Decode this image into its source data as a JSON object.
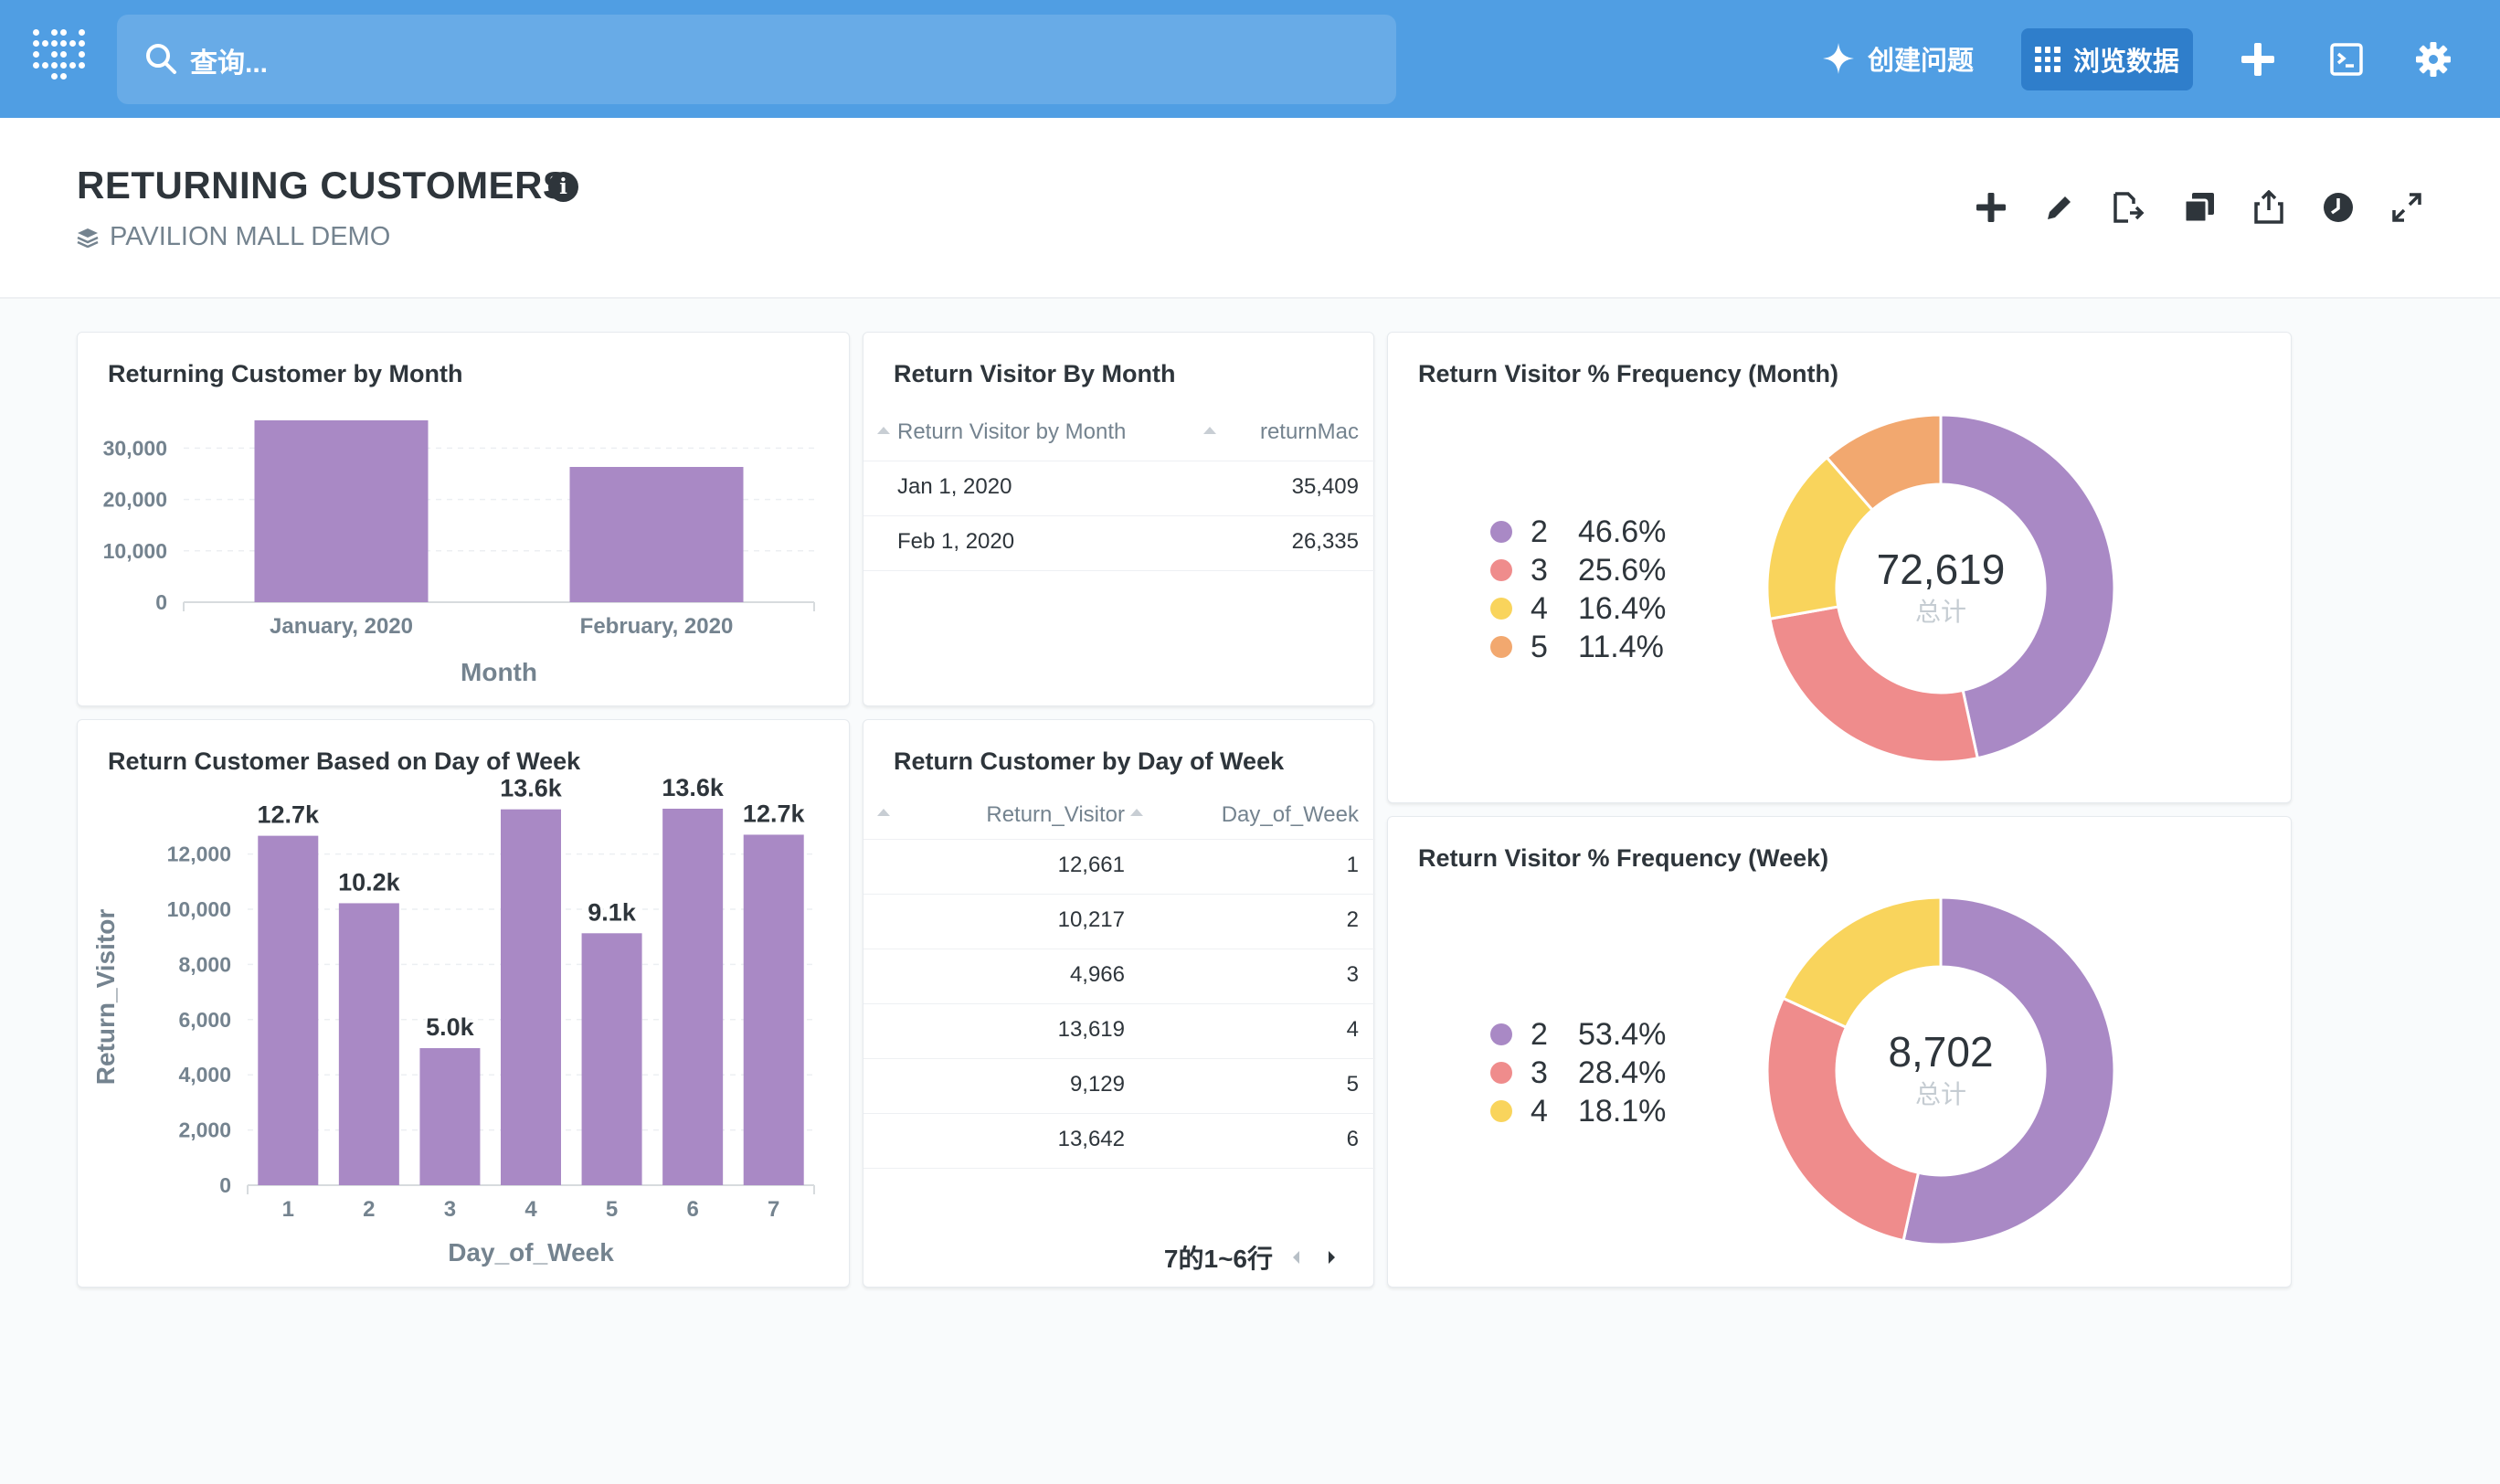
{
  "nav": {
    "search_placeholder": "查询...",
    "new_question": "创建问题",
    "browse_data": "浏览数据"
  },
  "header": {
    "title": "RETURNING CUSTOMERS",
    "collection": "PAVILION MALL DEMO"
  },
  "colors": {
    "nav": "#509ee3",
    "purple": "#a989c5",
    "red": "#ef8c8c",
    "yellow": "#f9d45c",
    "orange": "#f2a86f"
  },
  "cards": {
    "by_month": {
      "title": "Returning Customer by Month"
    },
    "visitor_table": {
      "title": "Return Visitor By Month",
      "columns": [
        "Return Visitor by Month",
        "returnMac"
      ],
      "rows": [
        [
          "Jan 1, 2020",
          "35,409"
        ],
        [
          "Feb 1, 2020",
          "26,335"
        ]
      ]
    },
    "freq_month": {
      "title": "Return Visitor % Frequency (Month)",
      "total": "72,619",
      "total_label": "总计",
      "legend": [
        {
          "key": "2",
          "pct": "46.6%",
          "color": "#a989c5"
        },
        {
          "key": "3",
          "pct": "25.6%",
          "color": "#ef8c8c"
        },
        {
          "key": "4",
          "pct": "16.4%",
          "color": "#f9d45c"
        },
        {
          "key": "5",
          "pct": "11.4%",
          "color": "#f2a86f"
        }
      ]
    },
    "by_dow": {
      "title": "Return Customer Based on Day of Week"
    },
    "dow_table": {
      "title": "Return Customer by Day of Week",
      "columns": [
        "Return_Visitor",
        "Day_of_Week"
      ],
      "rows": [
        [
          "12,661",
          "1"
        ],
        [
          "10,217",
          "2"
        ],
        [
          "4,966",
          "3"
        ],
        [
          "13,619",
          "4"
        ],
        [
          "9,129",
          "5"
        ],
        [
          "13,642",
          "6"
        ]
      ],
      "pager": "7的1~6行"
    },
    "freq_week": {
      "title": "Return Visitor % Frequency (Week)",
      "total": "8,702",
      "total_label": "总计",
      "legend": [
        {
          "key": "2",
          "pct": "53.4%",
          "color": "#a989c5"
        },
        {
          "key": "3",
          "pct": "28.4%",
          "color": "#ef8c8c"
        },
        {
          "key": "4",
          "pct": "18.1%",
          "color": "#f9d45c"
        }
      ]
    }
  },
  "chart_data": [
    {
      "type": "bar",
      "title": "Returning Customer by Month",
      "categories": [
        "January, 2020",
        "February, 2020"
      ],
      "values": [
        35409,
        26335
      ],
      "xlabel": "Month",
      "ylabel": "",
      "ylim": [
        0,
        35409
      ],
      "yticks": [
        0,
        10000,
        20000,
        30000
      ],
      "ytick_labels": [
        "0",
        "10,000",
        "20,000",
        "30,000"
      ],
      "color": "#a989c5",
      "grid": true
    },
    {
      "type": "bar",
      "title": "Return Customer Based on Day of Week",
      "categories": [
        "1",
        "2",
        "3",
        "4",
        "5",
        "6",
        "7"
      ],
      "values": [
        12661,
        10217,
        4966,
        13619,
        9129,
        13642,
        12700
      ],
      "data_labels": [
        "12.7k",
        "10.2k",
        "5.0k",
        "13.6k",
        "9.1k",
        "13.6k",
        "12.7k"
      ],
      "xlabel": "Day_of_Week",
      "ylabel": "Return_Visitor",
      "ylim": [
        0,
        13642
      ],
      "yticks": [
        0,
        2000,
        4000,
        6000,
        8000,
        10000,
        12000
      ],
      "ytick_labels": [
        "0",
        "2,000",
        "4,000",
        "6,000",
        "8,000",
        "10,000",
        "12,000"
      ],
      "color": "#a989c5",
      "grid": true
    },
    {
      "type": "pie",
      "title": "Return Visitor % Frequency (Month)",
      "categories": [
        "2",
        "3",
        "4",
        "5"
      ],
      "values": [
        46.6,
        25.6,
        16.4,
        11.4
      ],
      "colors": [
        "#a989c5",
        "#ef8c8c",
        "#f9d45c",
        "#f2a86f"
      ],
      "total": 72619
    },
    {
      "type": "pie",
      "title": "Return Visitor % Frequency (Week)",
      "categories": [
        "2",
        "3",
        "4"
      ],
      "values": [
        53.4,
        28.4,
        18.1
      ],
      "colors": [
        "#a989c5",
        "#ef8c8c",
        "#f9d45c"
      ],
      "total": 8702
    }
  ]
}
